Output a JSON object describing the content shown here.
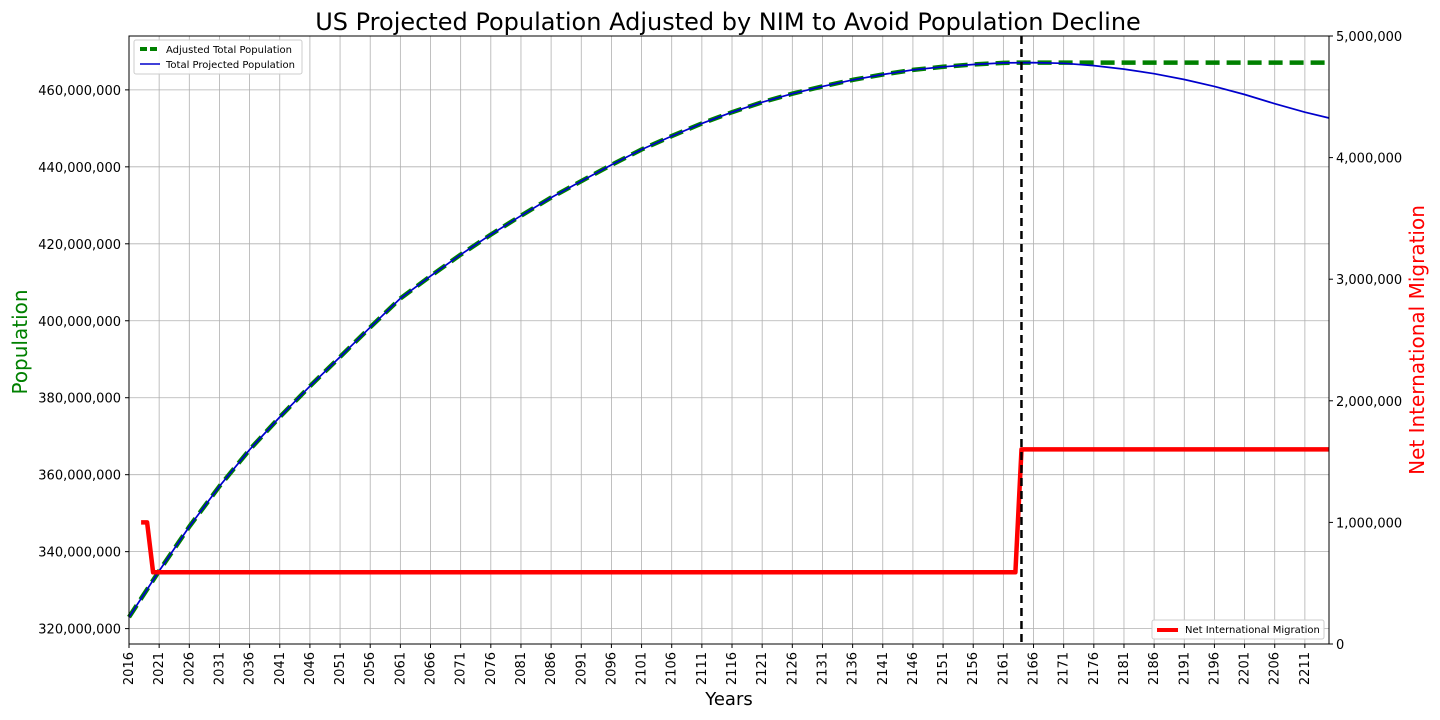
{
  "chart_data": {
    "type": "line",
    "title": "US Projected Population Adjusted by NIM to Avoid Population Decline",
    "xlabel": "Years",
    "ylabel_left": "Population",
    "ylabel_right": "Net International Migration",
    "ylabel_left_color": "#008000",
    "ylabel_right_color": "#ff0000",
    "xlim": [
      2016,
      2215
    ],
    "ylim_left": [
      316000000,
      474000000
    ],
    "ylim_right": [
      0,
      5000000
    ],
    "x_ticks": [
      2016,
      2021,
      2026,
      2031,
      2036,
      2041,
      2046,
      2051,
      2056,
      2061,
      2066,
      2071,
      2076,
      2081,
      2086,
      2091,
      2096,
      2101,
      2106,
      2111,
      2116,
      2121,
      2126,
      2131,
      2136,
      2141,
      2146,
      2151,
      2156,
      2161,
      2166,
      2171,
      2176,
      2181,
      2186,
      2191,
      2196,
      2201,
      2206,
      2211
    ],
    "y_left_ticks": [
      320000000,
      340000000,
      360000000,
      380000000,
      400000000,
      420000000,
      440000000,
      460000000
    ],
    "y_left_tick_labels": [
      "320,000,000",
      "340,000,000",
      "360,000,000",
      "380,000,000",
      "400,000,000",
      "420,000,000",
      "440,000,000",
      "460,000,000"
    ],
    "y_right_ticks": [
      0,
      1000000,
      2000000,
      3000000,
      4000000,
      5000000
    ],
    "y_right_tick_labels": [
      "0",
      "1,000,000",
      "2,000,000",
      "3,000,000",
      "4,000,000",
      "5,000,000"
    ],
    "grid": true,
    "vline": {
      "x": 2164,
      "color": "#000000",
      "style": "dashed"
    },
    "legend_left": {
      "placement": "upper-left",
      "entries": [
        "Adjusted Total Population",
        "Total Projected Population"
      ]
    },
    "legend_right": {
      "placement": "lower-right",
      "entries": [
        "Net International Migration"
      ]
    },
    "series": [
      {
        "name": "Adjusted Total Population",
        "axis": "left",
        "color": "#008000",
        "style": "dashed",
        "x": [
          2016,
          2021,
          2026,
          2031,
          2036,
          2041,
          2046,
          2051,
          2056,
          2061,
          2066,
          2071,
          2076,
          2081,
          2086,
          2091,
          2096,
          2101,
          2106,
          2111,
          2116,
          2121,
          2126,
          2131,
          2136,
          2141,
          2146,
          2151,
          2156,
          2161,
          2164,
          2215
        ],
        "values": [
          323000000,
          335000000,
          346500000,
          357000000,
          366500000,
          375000000,
          383000000,
          390600000,
          398300000,
          405800000,
          411600000,
          417200000,
          422400000,
          427300000,
          432000000,
          436300000,
          440500000,
          444500000,
          448000000,
          451300000,
          454200000,
          456800000,
          459000000,
          460900000,
          462600000,
          464000000,
          465200000,
          466000000,
          466600000,
          467000000,
          467100000,
          467100000
        ]
      },
      {
        "name": "Total Projected Population",
        "axis": "left",
        "color": "#0000cc",
        "style": "solid",
        "x": [
          2016,
          2021,
          2026,
          2031,
          2036,
          2041,
          2046,
          2051,
          2056,
          2061,
          2066,
          2071,
          2076,
          2081,
          2086,
          2091,
          2096,
          2101,
          2106,
          2111,
          2116,
          2121,
          2126,
          2131,
          2136,
          2141,
          2146,
          2151,
          2156,
          2161,
          2166,
          2171,
          2176,
          2181,
          2186,
          2191,
          2196,
          2201,
          2206,
          2211,
          2215
        ],
        "values": [
          323000000,
          335000000,
          346500000,
          357000000,
          366500000,
          375000000,
          383000000,
          390600000,
          398300000,
          405800000,
          411600000,
          417200000,
          422400000,
          427300000,
          432000000,
          436300000,
          440500000,
          444500000,
          448000000,
          451300000,
          454200000,
          456800000,
          459000000,
          460900000,
          462600000,
          464000000,
          465200000,
          466000000,
          466600000,
          467000000,
          467100000,
          466900000,
          466300000,
          465400000,
          464200000,
          462700000,
          460900000,
          458800000,
          456400000,
          454200000,
          452700000
        ]
      },
      {
        "name": "Net International Migration",
        "axis": "right",
        "color": "#ff0000",
        "style": "solid",
        "x": [
          2018,
          2019,
          2020,
          2163,
          2164,
          2215
        ],
        "values": [
          1000000,
          1000000,
          590000,
          590000,
          1600000,
          1600000
        ]
      }
    ]
  }
}
